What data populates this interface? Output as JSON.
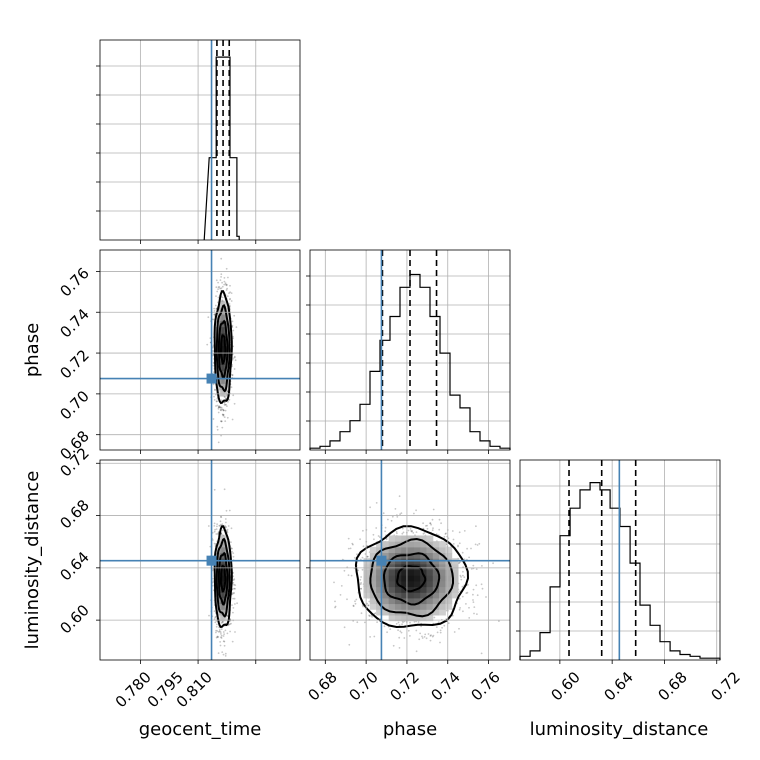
{
  "chart_data": {
    "type": "corner",
    "parameters": [
      "geocent_time",
      "phase",
      "luminosity_distance"
    ],
    "labels": {
      "geocent_time": "geocent_time",
      "phase": "phase",
      "luminosity_distance": "luminosity_distance"
    },
    "ranges": {
      "geocent_time": [
        0.7695,
        0.8215
      ],
      "phase": [
        0.6725,
        0.7705
      ],
      "luminosity_distance": [
        0.5695,
        0.7225
      ]
    },
    "ticks": {
      "geocent_time": [
        0.78,
        0.795,
        0.81
      ],
      "phase": [
        0.68,
        0.7,
        0.72,
        0.74,
        0.76
      ],
      "luminosity_distance": [
        0.6,
        0.64,
        0.68,
        0.72
      ]
    },
    "tick_labels": {
      "geocent_time": [
        "0.780",
        "0.795",
        "0.810"
      ],
      "phase": [
        "0.68",
        "0.70",
        "0.72",
        "0.74",
        "0.76"
      ],
      "luminosity_distance": [
        "0.60",
        "0.64",
        "0.68",
        "0.72"
      ]
    },
    "truths": {
      "geocent_time": 0.7985,
      "phase": 0.7075,
      "luminosity_distance": 0.6455
    },
    "quantiles": {
      "geocent_time": [
        0.7999,
        0.8015,
        0.8031
      ],
      "phase": [
        0.708,
        0.7215,
        0.7345
      ],
      "luminosity_distance": [
        0.607,
        0.632,
        0.658
      ]
    },
    "histograms": {
      "geocent_time": {
        "edges": [
          0.7979,
          0.7997,
          0.8015,
          0.8033,
          0.8051
        ],
        "counts": [
          0.45,
          1.0,
          1.0,
          0.45
        ],
        "tails": [
          0.7966,
          0.0,
          0.8057,
          0.02
        ]
      },
      "phase": {
        "edges": [
          0.6725,
          0.6774,
          0.6823,
          0.6872,
          0.6921,
          0.697,
          0.7019,
          0.7068,
          0.7117,
          0.7166,
          0.7215,
          0.7264,
          0.7313,
          0.7362,
          0.7411,
          0.746,
          0.7509,
          0.7558,
          0.7607,
          0.7656,
          0.7705
        ],
        "counts": [
          0.01,
          0.02,
          0.05,
          0.1,
          0.16,
          0.25,
          0.43,
          0.6,
          0.73,
          0.89,
          0.96,
          0.89,
          0.73,
          0.53,
          0.3,
          0.23,
          0.1,
          0.05,
          0.02,
          0.01
        ]
      },
      "luminosity_distance": {
        "edges": [
          0.5695,
          0.5772,
          0.5848,
          0.5925,
          0.6001,
          0.6078,
          0.6154,
          0.6231,
          0.6307,
          0.6384,
          0.646,
          0.6537,
          0.6613,
          0.669,
          0.6766,
          0.6843,
          0.6919,
          0.6996,
          0.7072,
          0.7149,
          0.7225
        ],
        "counts": [
          0.02,
          0.05,
          0.15,
          0.4,
          0.68,
          0.83,
          0.93,
          0.97,
          0.93,
          0.83,
          0.73,
          0.53,
          0.3,
          0.19,
          0.1,
          0.05,
          0.03,
          0.02,
          0.01,
          0.01
        ]
      }
    },
    "posterior_2d": {
      "mean": {
        "geocent_time": 0.8015,
        "phase": 0.722,
        "luminosity_distance": 0.632
      },
      "std": {
        "geocent_time": 0.0011,
        "phase": 0.0135,
        "luminosity_distance": 0.019
      }
    },
    "sample_color": "#000000",
    "truth_color": "#4682b4",
    "grid": true
  }
}
